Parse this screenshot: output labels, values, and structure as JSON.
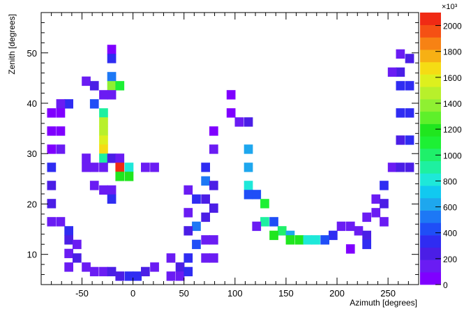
{
  "chart_data": {
    "type": "heatmap",
    "title": "",
    "xlabel": "Azimuth [degrees]",
    "ylabel": "Zenith [degrees]",
    "xlim": [
      -90,
      280
    ],
    "ylim": [
      4,
      58
    ],
    "x_ticks": [
      -50,
      0,
      50,
      100,
      150,
      200,
      250
    ],
    "y_ticks": [
      10,
      20,
      30,
      40,
      50
    ],
    "colorbar": {
      "min": 0,
      "max": 2100,
      "multiplier_label": "×10³",
      "ticks": [
        0,
        200,
        400,
        600,
        800,
        1000,
        1200,
        1400,
        1600,
        1800,
        2000
      ],
      "colors": [
        "#7f00ff",
        "#6a1cf3",
        "#4b1ee6",
        "#2f2cf2",
        "#1f4ef7",
        "#1d78f5",
        "#1ea7ee",
        "#11c9f0",
        "#1ee8d9",
        "#1ef0a0",
        "#1ff06a",
        "#1df034",
        "#20e61e",
        "#5ef02a",
        "#8ff032",
        "#b8f02b",
        "#ddf01e",
        "#f5dc14",
        "#f7b014",
        "#f78214",
        "#f55014",
        "#f02a14"
      ]
    },
    "bin_width_x": 8.4,
    "bin_width_y": 1.8,
    "cells": [
      {
        "x": -21,
        "y": 50.7,
        "v": 80
      },
      {
        "x": -21,
        "y": 48.9,
        "v": 300
      },
      {
        "x": -21,
        "y": 45.3,
        "v": 480
      },
      {
        "x": -21,
        "y": 43.5,
        "v": 1400
      },
      {
        "x": -13,
        "y": 43.5,
        "v": 1100
      },
      {
        "x": -46,
        "y": 44.4,
        "v": 150
      },
      {
        "x": -38,
        "y": 43.5,
        "v": 200
      },
      {
        "x": -63,
        "y": 39.9,
        "v": 300
      },
      {
        "x": -71,
        "y": 39.9,
        "v": 100
      },
      {
        "x": -29,
        "y": 41.7,
        "v": 120
      },
      {
        "x": -21,
        "y": 41.7,
        "v": 150
      },
      {
        "x": -38,
        "y": 39.9,
        "v": 400
      },
      {
        "x": -29,
        "y": 38.1,
        "v": 900
      },
      {
        "x": -29,
        "y": 36.3,
        "v": 1500
      },
      {
        "x": -29,
        "y": 34.5,
        "v": 1450
      },
      {
        "x": -29,
        "y": 32.7,
        "v": 1550
      },
      {
        "x": -29,
        "y": 30.9,
        "v": 1700
      },
      {
        "x": -29,
        "y": 29.1,
        "v": 900
      },
      {
        "x": -29,
        "y": 27.3,
        "v": 100
      },
      {
        "x": -21,
        "y": 29.1,
        "v": 200
      },
      {
        "x": -13,
        "y": 29.1,
        "v": 150
      },
      {
        "x": -13,
        "y": 27.3,
        "v": 2100
      },
      {
        "x": -4,
        "y": 27.3,
        "v": 850
      },
      {
        "x": -13,
        "y": 25.5,
        "v": 1150
      },
      {
        "x": -4,
        "y": 25.5,
        "v": 1150
      },
      {
        "x": 12,
        "y": 27.3,
        "v": 120
      },
      {
        "x": 21,
        "y": 27.3,
        "v": 120
      },
      {
        "x": -46,
        "y": 27.3,
        "v": 120
      },
      {
        "x": -38,
        "y": 27.3,
        "v": 150
      },
      {
        "x": -46,
        "y": 29.1,
        "v": 120
      },
      {
        "x": -38,
        "y": 23.7,
        "v": 120
      },
      {
        "x": -29,
        "y": 22.8,
        "v": 120
      },
      {
        "x": -21,
        "y": 22.8,
        "v": 120
      },
      {
        "x": -21,
        "y": 21.0,
        "v": 350
      },
      {
        "x": -80,
        "y": 38.1,
        "v": 80
      },
      {
        "x": -71,
        "y": 38.1,
        "v": 80
      },
      {
        "x": -80,
        "y": 34.5,
        "v": 80
      },
      {
        "x": -71,
        "y": 34.5,
        "v": 80
      },
      {
        "x": -80,
        "y": 30.9,
        "v": 80
      },
      {
        "x": -71,
        "y": 30.9,
        "v": 100
      },
      {
        "x": -80,
        "y": 27.3,
        "v": 300
      },
      {
        "x": -80,
        "y": 23.7,
        "v": 250
      },
      {
        "x": -80,
        "y": 20.1,
        "v": 200
      },
      {
        "x": -80,
        "y": 16.5,
        "v": 120
      },
      {
        "x": -71,
        "y": 16.5,
        "v": 150
      },
      {
        "x": -63,
        "y": 14.7,
        "v": 300
      },
      {
        "x": -63,
        "y": 12.9,
        "v": 200
      },
      {
        "x": -55,
        "y": 12.0,
        "v": 120
      },
      {
        "x": -63,
        "y": 10.2,
        "v": 150
      },
      {
        "x": -55,
        "y": 9.3,
        "v": 200
      },
      {
        "x": -63,
        "y": 7.5,
        "v": 150
      },
      {
        "x": -46,
        "y": 7.5,
        "v": 180
      },
      {
        "x": -38,
        "y": 6.6,
        "v": 180
      },
      {
        "x": -29,
        "y": 6.6,
        "v": 150
      },
      {
        "x": -21,
        "y": 6.6,
        "v": 200
      },
      {
        "x": -13,
        "y": 5.7,
        "v": 250
      },
      {
        "x": -4,
        "y": 5.7,
        "v": 300
      },
      {
        "x": 4,
        "y": 5.7,
        "v": 350
      },
      {
        "x": 12,
        "y": 6.6,
        "v": 200
      },
      {
        "x": 21,
        "y": 7.5,
        "v": 150
      },
      {
        "x": 37,
        "y": 9.3,
        "v": 120
      },
      {
        "x": 46,
        "y": 7.5,
        "v": 200
      },
      {
        "x": 37,
        "y": 5.7,
        "v": 150
      },
      {
        "x": 46,
        "y": 5.7,
        "v": 120
      },
      {
        "x": 54,
        "y": 9.3,
        "v": 300
      },
      {
        "x": 54,
        "y": 6.6,
        "v": 350
      },
      {
        "x": 62,
        "y": 12.0,
        "v": 400
      },
      {
        "x": 62,
        "y": 15.6,
        "v": 500
      },
      {
        "x": 54,
        "y": 14.7,
        "v": 200
      },
      {
        "x": 54,
        "y": 18.3,
        "v": 150
      },
      {
        "x": 54,
        "y": 22.8,
        "v": 100
      },
      {
        "x": 62,
        "y": 21.0,
        "v": 300
      },
      {
        "x": 71,
        "y": 21.0,
        "v": 250
      },
      {
        "x": 71,
        "y": 17.4,
        "v": 200
      },
      {
        "x": 71,
        "y": 12.9,
        "v": 180
      },
      {
        "x": 79,
        "y": 12.9,
        "v": 120
      },
      {
        "x": 71,
        "y": 9.3,
        "v": 180
      },
      {
        "x": 79,
        "y": 9.3,
        "v": 100
      },
      {
        "x": 71,
        "y": 27.3,
        "v": 300
      },
      {
        "x": 71,
        "y": 24.6,
        "v": 500
      },
      {
        "x": 79,
        "y": 23.7,
        "v": 250
      },
      {
        "x": 79,
        "y": 19.2,
        "v": 200
      },
      {
        "x": 79,
        "y": 30.9,
        "v": 120
      },
      {
        "x": 79,
        "y": 34.5,
        "v": 80
      },
      {
        "x": 96,
        "y": 41.7,
        "v": 80
      },
      {
        "x": 96,
        "y": 38.1,
        "v": 80
      },
      {
        "x": 104,
        "y": 36.3,
        "v": 100
      },
      {
        "x": 113,
        "y": 36.3,
        "v": 200
      },
      {
        "x": 113,
        "y": 30.9,
        "v": 650
      },
      {
        "x": 113,
        "y": 27.3,
        "v": 650
      },
      {
        "x": 113,
        "y": 23.7,
        "v": 850
      },
      {
        "x": 113,
        "y": 21.9,
        "v": 400
      },
      {
        "x": 121,
        "y": 21.9,
        "v": 400
      },
      {
        "x": 129,
        "y": 20.1,
        "v": 1050
      },
      {
        "x": 129,
        "y": 16.5,
        "v": 950
      },
      {
        "x": 121,
        "y": 15.6,
        "v": 100
      },
      {
        "x": 138,
        "y": 16.5,
        "v": 400
      },
      {
        "x": 146,
        "y": 14.7,
        "v": 1000
      },
      {
        "x": 138,
        "y": 13.8,
        "v": 1150
      },
      {
        "x": 154,
        "y": 13.8,
        "v": 650
      },
      {
        "x": 154,
        "y": 12.9,
        "v": 1150
      },
      {
        "x": 163,
        "y": 12.9,
        "v": 1150
      },
      {
        "x": 171,
        "y": 12.9,
        "v": 850
      },
      {
        "x": 179,
        "y": 12.9,
        "v": 850
      },
      {
        "x": 196,
        "y": 13.8,
        "v": 300
      },
      {
        "x": 188,
        "y": 12.9,
        "v": 400
      },
      {
        "x": 204,
        "y": 15.6,
        "v": 120
      },
      {
        "x": 213,
        "y": 15.6,
        "v": 120
      },
      {
        "x": 221,
        "y": 14.7,
        "v": 150
      },
      {
        "x": 229,
        "y": 13.8,
        "v": 200
      },
      {
        "x": 229,
        "y": 12.0,
        "v": 350
      },
      {
        "x": 213,
        "y": 11.1,
        "v": 80
      },
      {
        "x": 229,
        "y": 17.4,
        "v": 120
      },
      {
        "x": 238,
        "y": 18.3,
        "v": 150
      },
      {
        "x": 238,
        "y": 21.0,
        "v": 150
      },
      {
        "x": 246,
        "y": 16.5,
        "v": 100
      },
      {
        "x": 246,
        "y": 20.1,
        "v": 200
      },
      {
        "x": 246,
        "y": 23.7,
        "v": 350
      },
      {
        "x": 254,
        "y": 27.3,
        "v": 150
      },
      {
        "x": 262,
        "y": 27.3,
        "v": 250
      },
      {
        "x": 271,
        "y": 27.3,
        "v": 200
      },
      {
        "x": 262,
        "y": 32.7,
        "v": 250
      },
      {
        "x": 262,
        "y": 38.1,
        "v": 300
      },
      {
        "x": 262,
        "y": 43.5,
        "v": 300
      },
      {
        "x": 262,
        "y": 46.2,
        "v": 250
      },
      {
        "x": 254,
        "y": 46.2,
        "v": 120
      },
      {
        "x": 271,
        "y": 48.9,
        "v": 200
      },
      {
        "x": 262,
        "y": 49.8,
        "v": 150
      },
      {
        "x": 271,
        "y": 43.5,
        "v": 350
      },
      {
        "x": 271,
        "y": 38.1,
        "v": 350
      },
      {
        "x": 271,
        "y": 32.7,
        "v": 300
      }
    ]
  }
}
